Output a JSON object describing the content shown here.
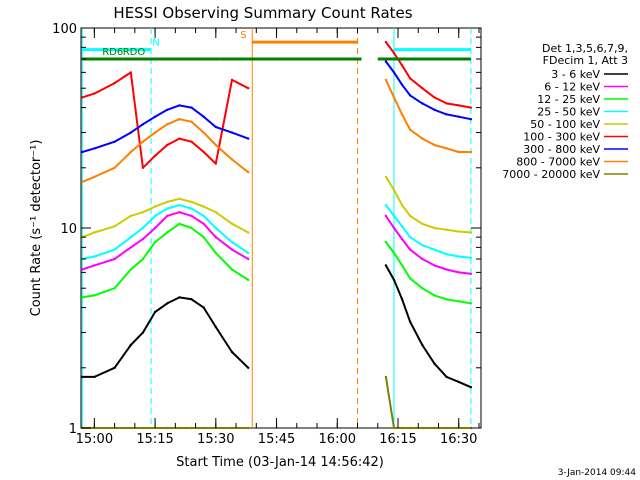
{
  "chart_data": {
    "type": "line",
    "title": "HESSI Observing Summary Count Rates",
    "xlabel": "Start Time (03-Jan-14 14:56:42)",
    "ylabel": "Count Rate (s⁻¹ detector⁻¹)",
    "y_scale": "log",
    "ylim": [
      1,
      100
    ],
    "xlim": [
      "14:56:42",
      "16:35:30"
    ],
    "x_ticks": [
      "15:00",
      "15:15",
      "15:30",
      "15:45",
      "16:00",
      "16:15",
      "16:30"
    ],
    "y_ticks": [
      "1",
      "10",
      "100"
    ],
    "grid": false,
    "legend": {
      "placement": "right-outside",
      "header": [
        "Det 1,3,5,6,7,9,",
        "FDecim 1, Att 3"
      ]
    },
    "x": [
      "14:57",
      "15:00",
      "15:05",
      "15:09",
      "15:12",
      "15:15",
      "15:18",
      "15:21",
      "15:24",
      "15:27",
      "15:30",
      "15:34",
      "15:38",
      "16:12",
      "16:14",
      "16:16",
      "16:18",
      "16:21",
      "16:24",
      "16:27",
      "16:30",
      "16:33"
    ],
    "series": [
      {
        "name": "3 - 6 keV",
        "color": "#000000",
        "values": [
          1.8,
          1.8,
          2.0,
          2.6,
          3.0,
          3.8,
          4.2,
          4.5,
          4.4,
          4.0,
          3.2,
          2.4,
          2.0,
          6.5,
          5.5,
          4.4,
          3.4,
          2.6,
          2.1,
          1.8,
          1.7,
          1.6
        ]
      },
      {
        "name": "6 - 12 keV",
        "color": "#ff00ff",
        "values": [
          6.2,
          6.5,
          7.0,
          8.0,
          8.8,
          10.0,
          11.5,
          12.0,
          11.5,
          10.5,
          9.0,
          7.8,
          7.0,
          11.5,
          10.0,
          8.8,
          7.8,
          7.0,
          6.5,
          6.2,
          6.0,
          5.9
        ]
      },
      {
        "name": "12 - 25 keV",
        "color": "#00ff00",
        "values": [
          4.5,
          4.6,
          5.0,
          6.2,
          7.0,
          8.5,
          9.5,
          10.5,
          10.0,
          9.0,
          7.5,
          6.2,
          5.5,
          8.5,
          7.5,
          6.5,
          5.6,
          5.0,
          4.6,
          4.4,
          4.3,
          4.2
        ]
      },
      {
        "name": "25 - 50 keV",
        "color": "#00ffff",
        "values": [
          7.0,
          7.2,
          7.8,
          9.0,
          10.0,
          11.5,
          12.5,
          13.0,
          12.5,
          11.5,
          10.0,
          8.5,
          7.5,
          13.0,
          11.5,
          10.2,
          9.0,
          8.2,
          7.8,
          7.4,
          7.2,
          7.1
        ]
      },
      {
        "name": "50 - 100 keV",
        "color": "#cccc00",
        "values": [
          9.0,
          9.5,
          10.2,
          11.5,
          12.0,
          12.8,
          13.5,
          14.0,
          13.5,
          12.8,
          12.0,
          10.5,
          9.5,
          18.0,
          15.5,
          13.0,
          11.5,
          10.5,
          10.0,
          9.8,
          9.6,
          9.5
        ]
      },
      {
        "name": "100 - 300 keV",
        "color": "#ff0000",
        "values": [
          45,
          47,
          53,
          60,
          20,
          23,
          26,
          28,
          27,
          24,
          21,
          55,
          50,
          85,
          75,
          65,
          56,
          50,
          45,
          42,
          41,
          40
        ]
      },
      {
        "name": "300 - 800 keV",
        "color": "#0000ff",
        "values": [
          24,
          25,
          27,
          30,
          33,
          36,
          39,
          41,
          40,
          36,
          32,
          30,
          28,
          68,
          60,
          52,
          46,
          42,
          39,
          37,
          36,
          35
        ]
      },
      {
        "name": "800 - 7000 keV",
        "color": "#ff8000",
        "values": [
          17,
          18,
          20,
          24,
          27,
          30,
          33,
          35,
          34,
          30,
          26,
          22,
          19,
          55,
          45,
          37,
          31,
          28,
          26,
          25,
          24,
          24
        ]
      },
      {
        "name": "7000 - 20000 keV",
        "color": "#808000",
        "values": [
          1.0,
          1.0,
          1.0,
          1.0,
          1.0,
          1.0,
          1.0,
          1.0,
          1.0,
          1.0,
          1.0,
          1.0,
          1.0,
          1.8,
          1.0,
          1.0,
          1.0,
          1.0,
          1.0,
          1.0,
          1.0,
          1.0
        ]
      }
    ],
    "flags": [
      {
        "label": "N",
        "color": "#00ffff",
        "segments": [
          [
            "14:57",
            "15:14"
          ],
          [
            "16:14",
            "16:33"
          ]
        ],
        "level": 78
      },
      {
        "label": "RD6",
        "color": "#008000",
        "segments": [
          [
            "14:57",
            "15:07"
          ]
        ],
        "level": 70
      },
      {
        "label": "RDO",
        "color": "#008000",
        "segments": [
          [
            "15:07",
            "15:31"
          ],
          [
            "15:31",
            "16:06"
          ],
          [
            "16:10",
            "16:33"
          ]
        ],
        "level": 70
      },
      {
        "label": "S",
        "color": "#ff8000",
        "segments": [
          [
            "15:39",
            "16:05"
          ]
        ],
        "level": 85
      }
    ],
    "vertical_markers": [
      {
        "color": "#00ffff",
        "dash": true,
        "x": "15:14"
      },
      {
        "color": "#00ffff",
        "dash": true,
        "x": "16:33"
      },
      {
        "color": "#00ffff",
        "dash": false,
        "x": "14:57"
      },
      {
        "color": "#00ffff",
        "dash": false,
        "x": "16:14"
      },
      {
        "color": "#ff8000",
        "dash": false,
        "x": "15:39"
      },
      {
        "color": "#ff8000",
        "dash": true,
        "x": "16:05"
      }
    ],
    "footer_date": "3-Jan-2014 09:44"
  }
}
